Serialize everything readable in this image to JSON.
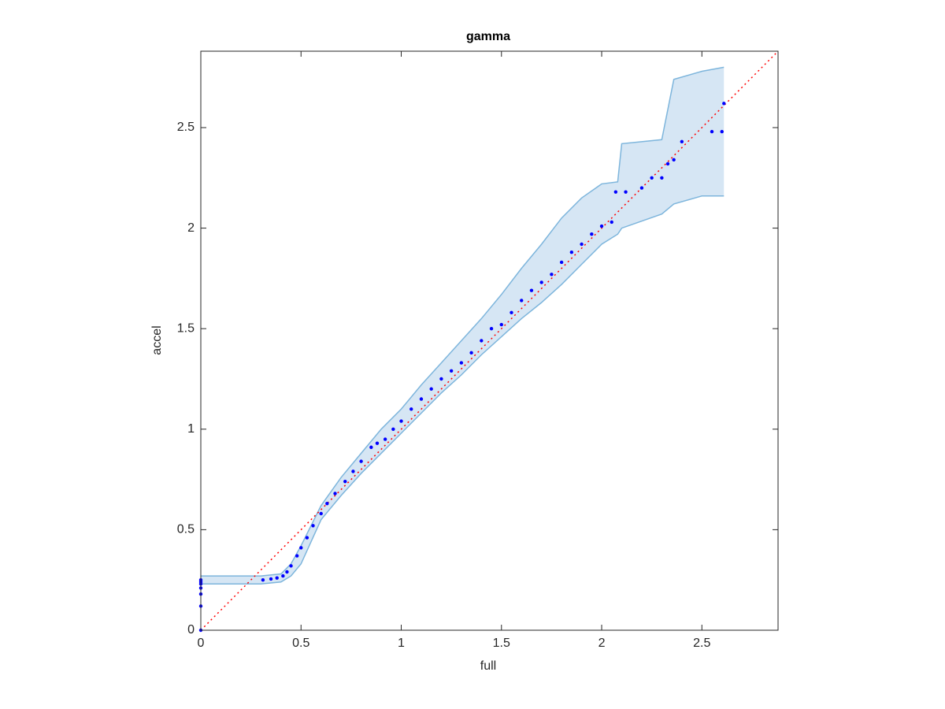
{
  "chart_data": {
    "type": "scatter",
    "title": "gamma",
    "xlabel": "full",
    "ylabel": "accel",
    "xlim": [
      0,
      2.88
    ],
    "ylim": [
      0,
      2.88
    ],
    "xticks": [
      0,
      0.5,
      1,
      1.5,
      2,
      2.5
    ],
    "yticks": [
      0,
      0.5,
      1,
      1.5,
      2,
      2.5
    ],
    "band": {
      "color": "#d6e6f4",
      "edge_color": "#7db5dc",
      "x": [
        0,
        0.3,
        0.4,
        0.45,
        0.5,
        0.6,
        0.7,
        0.8,
        0.9,
        1.0,
        1.1,
        1.2,
        1.3,
        1.4,
        1.5,
        1.6,
        1.7,
        1.8,
        1.9,
        2.0,
        2.08,
        2.1,
        2.3,
        2.36,
        2.5,
        2.61
      ],
      "upper": [
        0.27,
        0.27,
        0.28,
        0.33,
        0.42,
        0.62,
        0.76,
        0.88,
        1.0,
        1.1,
        1.22,
        1.33,
        1.44,
        1.55,
        1.67,
        1.8,
        1.92,
        2.05,
        2.15,
        2.22,
        2.23,
        2.42,
        2.44,
        2.74,
        2.78,
        2.8
      ],
      "lower": [
        0.23,
        0.23,
        0.24,
        0.27,
        0.33,
        0.55,
        0.67,
        0.78,
        0.88,
        0.98,
        1.08,
        1.18,
        1.27,
        1.37,
        1.46,
        1.55,
        1.63,
        1.72,
        1.82,
        1.92,
        1.97,
        2.0,
        2.07,
        2.12,
        2.16,
        2.16
      ]
    },
    "points": {
      "color": "#0000ff",
      "x": [
        0,
        0,
        0,
        0,
        0,
        0,
        0,
        0.31,
        0.35,
        0.38,
        0.41,
        0.43,
        0.45,
        0.48,
        0.5,
        0.53,
        0.56,
        0.6,
        0.63,
        0.67,
        0.72,
        0.76,
        0.8,
        0.85,
        0.88,
        0.92,
        0.96,
        1.0,
        1.05,
        1.1,
        1.15,
        1.2,
        1.25,
        1.3,
        1.35,
        1.4,
        1.45,
        1.5,
        1.55,
        1.6,
        1.65,
        1.7,
        1.75,
        1.8,
        1.85,
        1.9,
        1.95,
        2.0,
        2.05,
        2.07,
        2.12,
        2.2,
        2.25,
        2.3,
        2.33,
        2.36,
        2.4,
        2.55,
        2.6,
        2.61
      ],
      "y": [
        0,
        0.12,
        0.18,
        0.21,
        0.23,
        0.24,
        0.25,
        0.25,
        0.255,
        0.26,
        0.27,
        0.29,
        0.32,
        0.37,
        0.41,
        0.46,
        0.52,
        0.58,
        0.63,
        0.68,
        0.74,
        0.79,
        0.84,
        0.91,
        0.93,
        0.95,
        1.0,
        1.04,
        1.1,
        1.15,
        1.2,
        1.25,
        1.29,
        1.33,
        1.38,
        1.44,
        1.5,
        1.52,
        1.58,
        1.64,
        1.69,
        1.73,
        1.77,
        1.83,
        1.88,
        1.92,
        1.97,
        2.01,
        2.03,
        2.18,
        2.18,
        2.2,
        2.25,
        2.25,
        2.32,
        2.34,
        2.43,
        2.48,
        2.48,
        2.62
      ]
    },
    "reference_line": {
      "color": "#ff0000",
      "x": [
        0,
        2.88
      ],
      "y": [
        0,
        2.88
      ]
    }
  }
}
